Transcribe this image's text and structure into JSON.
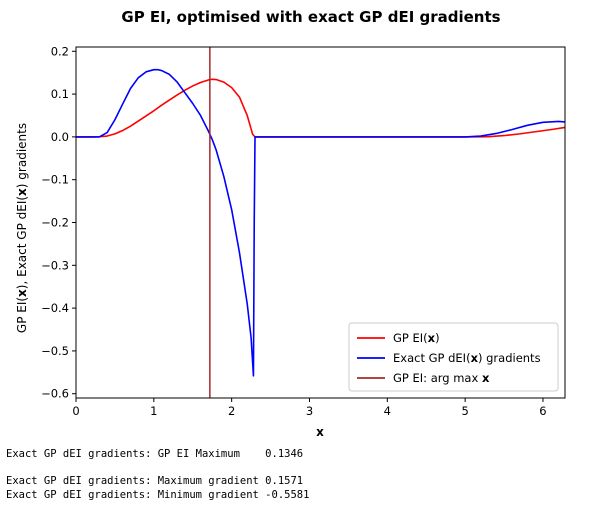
{
  "chart_data": {
    "type": "line",
    "title_parts": [
      {
        "text": "GP EI, optimised with exact GP dEI gradients",
        "bold": false
      }
    ],
    "xlabel": "x",
    "ylabel_parts": [
      {
        "text": "GP EI(",
        "bold": false
      },
      {
        "text": "x",
        "bold": true
      },
      {
        "text": "), Exact GP dEI(",
        "bold": false
      },
      {
        "text": "x",
        "bold": true
      },
      {
        "text": ") gradients",
        "bold": false
      }
    ],
    "xlim": [
      0,
      6.283
    ],
    "ylim": [
      -0.61,
      0.21
    ],
    "xticks": [
      0,
      1,
      2,
      3,
      4,
      5,
      6
    ],
    "xtick_labels": [
      "0",
      "1",
      "2",
      "3",
      "4",
      "5",
      "6"
    ],
    "yticks": [
      0.2,
      0.1,
      0.0,
      -0.1,
      -0.2,
      -0.3,
      -0.4,
      -0.5,
      -0.6
    ],
    "ytick_labels": [
      "0.2",
      "0.1",
      "0.0",
      "−0.1",
      "−0.2",
      "−0.3",
      "−0.4",
      "−0.5",
      "−0.6"
    ],
    "grid": false,
    "legend_position": "lower-right",
    "series": [
      {
        "name_parts": [
          {
            "text": "GP EI(",
            "bold": false
          },
          {
            "text": "x",
            "bold": true
          },
          {
            "text": ")",
            "bold": false
          }
        ],
        "color": "#ff0000",
        "x": [
          0,
          0.2,
          0.3,
          0.4,
          0.5,
          0.6,
          0.7,
          0.8,
          0.9,
          1.0,
          1.1,
          1.2,
          1.3,
          1.4,
          1.5,
          1.6,
          1.7,
          1.75,
          1.8,
          1.9,
          2.0,
          2.1,
          2.2,
          2.27,
          2.3,
          2.5,
          3.0,
          4.0,
          5.0,
          5.3,
          5.5,
          5.7,
          5.9,
          6.1,
          6.283
        ],
        "y": [
          0,
          0,
          0.0003,
          0.002,
          0.007,
          0.015,
          0.025,
          0.037,
          0.049,
          0.061,
          0.074,
          0.086,
          0.098,
          0.109,
          0.119,
          0.127,
          0.133,
          0.1346,
          0.134,
          0.128,
          0.115,
          0.093,
          0.05,
          0.006,
          0,
          0,
          0,
          0,
          0,
          0.0005,
          0.003,
          0.007,
          0.012,
          0.017,
          0.022
        ]
      },
      {
        "name_parts": [
          {
            "text": "Exact GP dEI(",
            "bold": false
          },
          {
            "text": "x",
            "bold": true
          },
          {
            "text": ") gradients",
            "bold": false
          }
        ],
        "color": "#0000ff",
        "x": [
          0,
          0.3,
          0.4,
          0.5,
          0.6,
          0.7,
          0.8,
          0.9,
          1.0,
          1.05,
          1.1,
          1.2,
          1.3,
          1.4,
          1.5,
          1.6,
          1.7,
          1.75,
          1.8,
          1.9,
          2.0,
          2.1,
          2.2,
          2.25,
          2.28,
          2.29,
          2.3,
          2.5,
          3.0,
          4.0,
          5.0,
          5.2,
          5.4,
          5.6,
          5.8,
          6.0,
          6.2,
          6.283
        ],
        "y": [
          0,
          0,
          0.01,
          0.04,
          0.077,
          0.113,
          0.138,
          0.152,
          0.157,
          0.1571,
          0.155,
          0.146,
          0.128,
          0.103,
          0.078,
          0.05,
          0.014,
          -0.006,
          -0.03,
          -0.093,
          -0.17,
          -0.27,
          -0.39,
          -0.47,
          -0.5581,
          -0.2,
          0,
          0,
          0,
          0,
          0,
          0.002,
          0.008,
          0.017,
          0.027,
          0.034,
          0.036,
          0.035
        ]
      },
      {
        "name_parts": [
          {
            "text": "GP EI: arg max ",
            "bold": false
          },
          {
            "text": "x",
            "bold": true
          }
        ],
        "color": "#a52a2a",
        "vline_x": 1.72
      }
    ]
  },
  "output_lines": [
    "Exact GP dEI gradients: GP EI Maximum    0.1346",
    "",
    "Exact GP dEI gradients: Maximum gradient 0.1571",
    "Exact GP dEI gradients: Minimum gradient -0.5581"
  ]
}
